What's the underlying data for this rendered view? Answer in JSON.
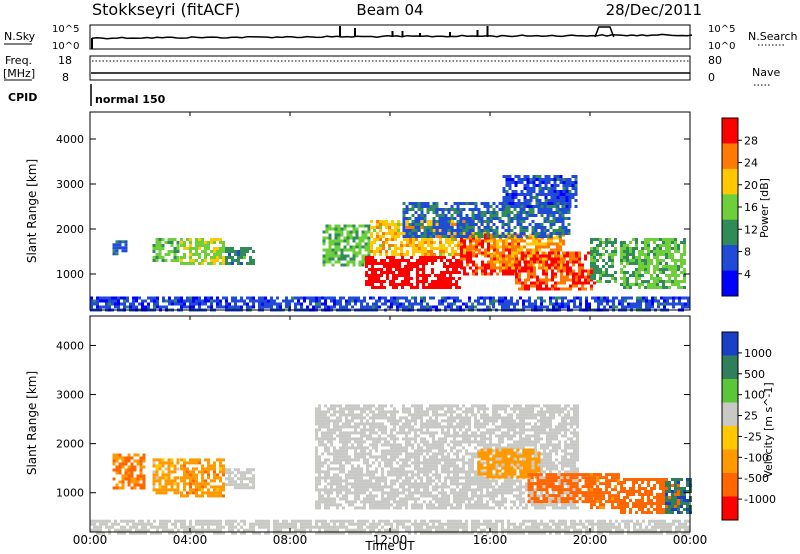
{
  "header": {
    "station": "Stokkseyri (fitACF)",
    "beam": "Beam 04",
    "date": "28/Dec/2011"
  },
  "top_panels": {
    "nsky_label": "N.Sky",
    "nsky_tick_high": "10^5",
    "nsky_tick_low": "10^0",
    "nsearch_label": "N.Search",
    "nsearch_tick_high": "10^5",
    "nsearch_tick_low": "10^0",
    "freq_label_line1": "Freq.",
    "freq_label_line2": "[MHz]",
    "freq_tick_high": "18",
    "freq_tick_low": "8",
    "nave_label": "Nave",
    "nave_tick_high": "80",
    "nave_tick_low": "0",
    "cpid_label": "CPID",
    "cpid_value": "normal 150"
  },
  "x_axis": {
    "label": "Time UT",
    "ticks": [
      "00:00",
      "04:00",
      "08:00",
      "12:00",
      "16:00",
      "20:00",
      "00:00"
    ]
  },
  "chart_data": [
    {
      "type": "heatmap",
      "panel": "power",
      "xlabel": "Time UT",
      "ylabel": "Slant Range [km]",
      "xlim_hours": [
        0,
        24
      ],
      "ylim": [
        200,
        4600
      ],
      "yticks": [
        1000,
        2000,
        3000,
        4000
      ],
      "colorbar": {
        "label": "Power [dB]",
        "ticks": [
          "4",
          "8",
          "12",
          "16",
          "20",
          "24",
          "28"
        ],
        "colors": [
          "#0000ff",
          "#1f4bd6",
          "#2f8c57",
          "#6fcf3a",
          "#ffc800",
          "#ff7a00",
          "#ff0000"
        ],
        "range": [
          0,
          30
        ]
      },
      "regions": [
        {
          "t0": 0.9,
          "t1": 1.5,
          "r0": 1450,
          "r1": 1750,
          "value": 8
        },
        {
          "t0": 2.5,
          "t1": 3.5,
          "r0": 1300,
          "r1": 1800,
          "value": 14
        },
        {
          "t0": 3.6,
          "t1": 5.3,
          "r0": 1200,
          "r1": 1800,
          "value": 16
        },
        {
          "t0": 5.4,
          "t1": 6.6,
          "r0": 1200,
          "r1": 1600,
          "value": 10
        },
        {
          "t0": 9.3,
          "t1": 11.2,
          "r0": 1200,
          "r1": 2100,
          "value": 14
        },
        {
          "t0": 11.0,
          "t1": 14.8,
          "r0": 700,
          "r1": 1400,
          "value": 29
        },
        {
          "t0": 11.2,
          "t1": 16.0,
          "r0": 1400,
          "r1": 2200,
          "value": 20
        },
        {
          "t0": 14.8,
          "t1": 17.2,
          "r0": 1000,
          "r1": 1900,
          "value": 26
        },
        {
          "t0": 16.0,
          "t1": 19.0,
          "r0": 1100,
          "r1": 1900,
          "value": 22
        },
        {
          "t0": 17.0,
          "t1": 20.2,
          "r0": 650,
          "r1": 1500,
          "value": 26
        },
        {
          "t0": 12.5,
          "t1": 19.2,
          "r0": 1800,
          "r1": 2600,
          "value": 8
        },
        {
          "t0": 16.5,
          "t1": 19.4,
          "r0": 2500,
          "r1": 3200,
          "value": 6
        },
        {
          "t0": 20.0,
          "t1": 21.0,
          "r0": 800,
          "r1": 1800,
          "value": 12
        },
        {
          "t0": 21.2,
          "t1": 23.8,
          "r0": 700,
          "r1": 1800,
          "value": 14
        },
        {
          "t0": 0.0,
          "t1": 24.0,
          "r0": 200,
          "r1": 500,
          "value": 6
        }
      ]
    },
    {
      "type": "heatmap",
      "panel": "velocity",
      "xlabel": "Time UT",
      "ylabel": "Slant Range [km]",
      "xlim_hours": [
        0,
        24
      ],
      "ylim": [
        200,
        4600
      ],
      "yticks": [
        1000,
        2000,
        3000,
        4000
      ],
      "colorbar": {
        "label": "Velocity [m s^-1]",
        "ticks": [
          "1000",
          "500",
          "100",
          "25",
          "-25",
          "-100",
          "-500",
          "-1000"
        ],
        "colors": [
          "#1a3fc8",
          "#2f7f5a",
          "#5cc63a",
          "#c8c8c4",
          "#ffc800",
          "#ff9900",
          "#ff6600",
          "#ff0000"
        ]
      },
      "regions": [
        {
          "t0": 0.9,
          "t1": 2.2,
          "r0": 1100,
          "r1": 1800,
          "value": -300
        },
        {
          "t0": 2.5,
          "t1": 3.5,
          "r0": 1000,
          "r1": 1700,
          "value": -150
        },
        {
          "t0": 3.6,
          "t1": 5.3,
          "r0": 950,
          "r1": 1700,
          "value": -200
        },
        {
          "t0": 5.4,
          "t1": 6.6,
          "r0": 1100,
          "r1": 1500,
          "value": 50
        },
        {
          "t0": 9.0,
          "t1": 19.5,
          "r0": 700,
          "r1": 2800,
          "value": 0
        },
        {
          "t0": 15.5,
          "t1": 18.0,
          "r0": 1300,
          "r1": 1900,
          "value": -80
        },
        {
          "t0": 17.5,
          "t1": 20.3,
          "r0": 800,
          "r1": 1400,
          "value": -600
        },
        {
          "t0": 20.0,
          "t1": 21.2,
          "r0": 700,
          "r1": 1400,
          "value": -400
        },
        {
          "t0": 21.2,
          "t1": 23.5,
          "r0": 600,
          "r1": 1300,
          "value": -500
        },
        {
          "t0": 23.0,
          "t1": 24.0,
          "r0": 600,
          "r1": 1300,
          "value": 700
        },
        {
          "t0": 0.0,
          "t1": 24.0,
          "r0": 200,
          "r1": 450,
          "value": 0
        }
      ]
    }
  ]
}
